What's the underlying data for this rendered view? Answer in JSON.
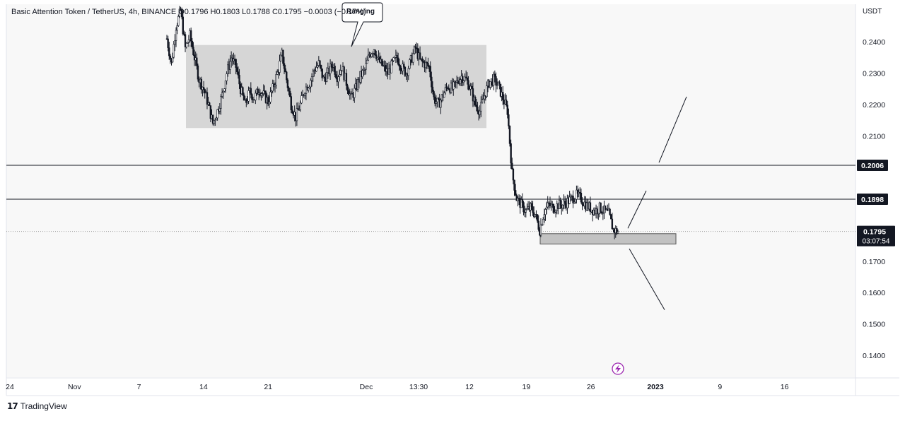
{
  "header": {
    "symbol": "Basic Attention Token / TetherUS, 4h, BINANCE",
    "open": "O0.1796",
    "high": "H0.1803",
    "low": "L0.1788",
    "close": "C0.1795",
    "change": "−0.0003 (−0.17%)"
  },
  "brand": {
    "name": "TradingView",
    "logo_icon": "tradingview-logo-icon"
  },
  "chart_data": {
    "type": "candlestick",
    "symbol": "BATUSDT",
    "interval": "4h",
    "exchange": "BINANCE",
    "y_axis": {
      "unit": "USDT",
      "range": [
        0.133,
        0.252
      ],
      "ticks": [
        "0.2400",
        "0.2300",
        "0.2200",
        "0.2100",
        "0.1700",
        "0.1600",
        "0.1500",
        "0.1400"
      ]
    },
    "x_axis": {
      "ticks": [
        "24",
        "Nov",
        "7",
        "14",
        "21",
        "Dec",
        "13:30",
        "12",
        "19",
        "26",
        "2023",
        "9",
        "16"
      ]
    },
    "horizontal_lines": [
      {
        "price": 0.2006,
        "label": "0.2006"
      },
      {
        "price": 0.1898,
        "label": "0.1898"
      }
    ],
    "last_price": {
      "value": 0.1795,
      "label": "0.1795",
      "countdown": "03:07:54"
    },
    "annotations": {
      "range_box": {
        "text": "Ranging",
        "price_top": 0.239,
        "price_bottom": 0.2125
      },
      "support_zone": {
        "price_top": 0.1788,
        "price_bottom": 0.1755
      }
    },
    "price_path": [
      0.241,
      0.233,
      0.245,
      0.25,
      0.238,
      0.242,
      0.235,
      0.228,
      0.225,
      0.22,
      0.214,
      0.218,
      0.223,
      0.23,
      0.235,
      0.232,
      0.225,
      0.22,
      0.224,
      0.222,
      0.225,
      0.223,
      0.221,
      0.225,
      0.23,
      0.236,
      0.228,
      0.22,
      0.216,
      0.22,
      0.225,
      0.227,
      0.231,
      0.233,
      0.228,
      0.23,
      0.233,
      0.229,
      0.232,
      0.227,
      0.222,
      0.225,
      0.229,
      0.231,
      0.236,
      0.238,
      0.234,
      0.232,
      0.23,
      0.233,
      0.235,
      0.232,
      0.23,
      0.234,
      0.238,
      0.234,
      0.233,
      0.232,
      0.222,
      0.22,
      0.223,
      0.226,
      0.225,
      0.227,
      0.229,
      0.228,
      0.225,
      0.22,
      0.218,
      0.223,
      0.227,
      0.228,
      0.226,
      0.222,
      0.218,
      0.198,
      0.19,
      0.188,
      0.186,
      0.187,
      0.185,
      0.18,
      0.186,
      0.188,
      0.187,
      0.188,
      0.188,
      0.189,
      0.19,
      0.191,
      0.19,
      0.188,
      0.187,
      0.186,
      0.187,
      0.186,
      0.185,
      0.18,
      0.1795
    ],
    "arrows": [
      {
        "direction": "up",
        "from_price": 0.1805,
        "to_price": 0.1925
      },
      {
        "direction": "up",
        "from_price": 0.2015,
        "to_price": 0.2225
      },
      {
        "direction": "down",
        "from_price": 0.174,
        "to_price": 0.1545
      }
    ]
  }
}
